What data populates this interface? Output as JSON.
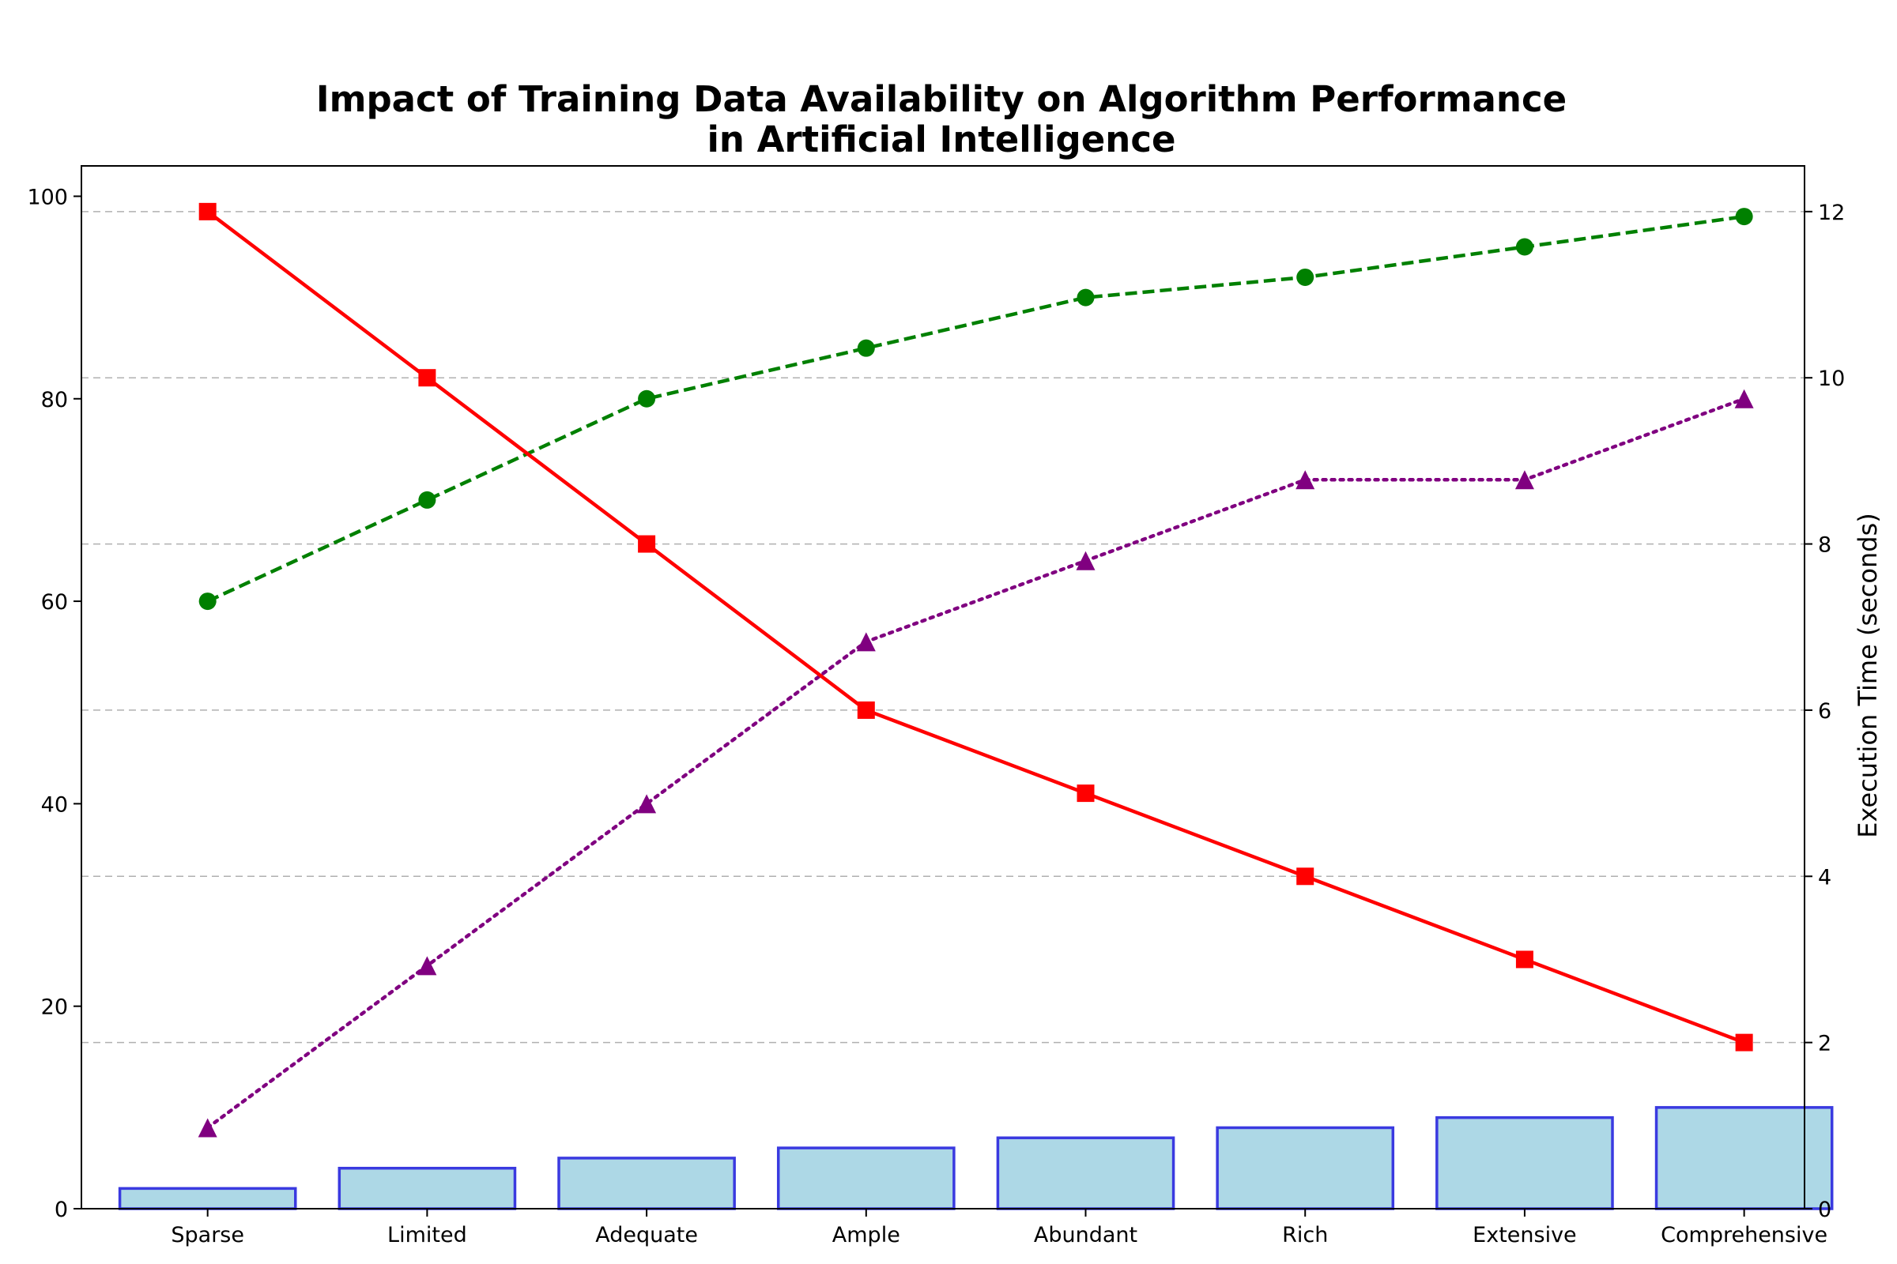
{
  "chart_data": {
    "type": "bar",
    "title_line1": "Impact of Training Data Availability on Algorithm Performance",
    "title_line2": "in Artificial Intelligence",
    "categories": [
      "Sparse",
      "Limited",
      "Adequate",
      "Ample",
      "Abundant",
      "Rich",
      "Extensive",
      "Comprehensive"
    ],
    "ylabel_left": "",
    "ylabel_right": "Execution Time (seconds)",
    "ylim_left": [
      0,
      103
    ],
    "ylim_right": [
      0,
      12.55
    ],
    "yticks_left": [
      0,
      20,
      40,
      60,
      80,
      100
    ],
    "yticks_right": [
      0,
      2,
      4,
      6,
      8,
      10,
      12
    ],
    "grid": "horizontal dashed at right-axis ticks",
    "series": [
      {
        "kind": "bar",
        "axis": "left",
        "values": [
          2,
          4,
          5,
          6,
          7,
          8,
          9,
          10
        ],
        "fill": "#add8e6",
        "edge": "#3a3ae0"
      },
      {
        "kind": "line",
        "axis": "left",
        "marker": "circle",
        "dash": "dashed",
        "values": [
          60,
          70,
          80,
          85,
          90,
          92,
          95,
          98
        ],
        "color": "#008000"
      },
      {
        "kind": "line",
        "axis": "left",
        "marker": "triangle",
        "dash": "dotted",
        "values": [
          8,
          24,
          40,
          56,
          64,
          72,
          72,
          80
        ],
        "color": "#800080"
      },
      {
        "kind": "line",
        "axis": "right",
        "marker": "square",
        "dash": "solid",
        "values": [
          12,
          10,
          8,
          6,
          5,
          4,
          3,
          2
        ],
        "color": "#ff0000"
      }
    ]
  }
}
